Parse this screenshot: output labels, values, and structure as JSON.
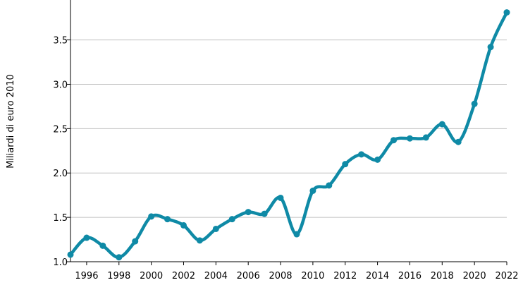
{
  "chart_data": {
    "type": "line",
    "title": "",
    "xlabel": "",
    "ylabel": "Miliardi di euro 2010",
    "x": [
      1995,
      1996,
      1997,
      1998,
      1999,
      2000,
      2001,
      2002,
      2003,
      2004,
      2005,
      2006,
      2007,
      2008,
      2009,
      2010,
      2011,
      2012,
      2013,
      2014,
      2015,
      2016,
      2017,
      2018,
      2019,
      2020,
      2021,
      2022
    ],
    "series": [
      {
        "values": [
          1.08,
          1.27,
          1.18,
          1.05,
          1.23,
          1.51,
          1.48,
          1.41,
          1.24,
          1.37,
          1.48,
          1.56,
          1.54,
          1.72,
          1.31,
          1.8,
          1.86,
          2.1,
          2.21,
          2.15,
          2.37,
          2.39,
          2.4,
          2.55,
          2.35,
          2.78,
          3.42,
          3.81
        ]
      }
    ],
    "xlim": [
      1995,
      2022
    ],
    "ylim": [
      1.0,
      3.95
    ],
    "x_ticks": [
      "1996",
      "1998",
      "2000",
      "2002",
      "2004",
      "2006",
      "2008",
      "2010",
      "2012",
      "2014",
      "2016",
      "2018",
      "2020",
      "2022"
    ],
    "y_ticks": [
      "1.0",
      "1.5",
      "2.0",
      "2.5",
      "3.0",
      "3.5"
    ],
    "grid": "horizontal",
    "legend": "none",
    "colors": {
      "line": "#0f8aa6",
      "grid": "#c0c0c0",
      "axis": "#000000"
    }
  }
}
